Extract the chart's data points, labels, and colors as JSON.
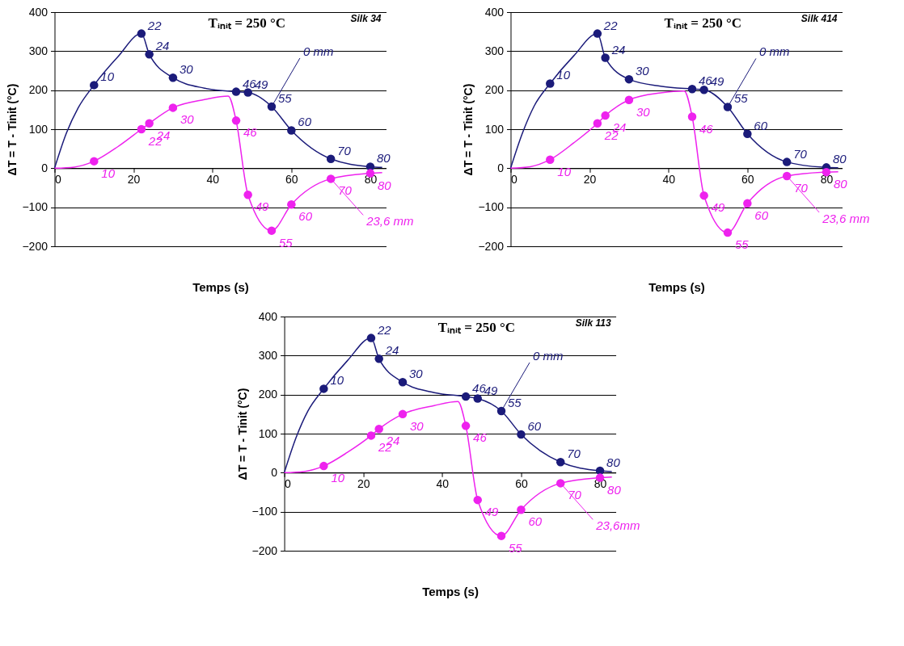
{
  "chart_data": [
    {
      "type": "line",
      "xlabel": "Temps (s)",
      "ylabel": "ΔT = T - Tinit (°C)",
      "xlim": [
        0,
        84
      ],
      "xticks": [
        0,
        20,
        40,
        60,
        80
      ],
      "ylim": [
        -200,
        400
      ],
      "yticks": [
        -200,
        -100,
        0,
        100,
        200,
        300,
        400
      ],
      "grid": "y",
      "marker": "circle",
      "annotations": [
        "Tᵢₙᵢₜ = 250 °C",
        "Silk 34",
        {
          "text": "10",
          "x": 10,
          "y": 213
        },
        {
          "text": "22",
          "x": 22,
          "y": 345
        },
        {
          "text": "24",
          "x": 24,
          "y": 292
        },
        {
          "text": "30",
          "x": 30,
          "y": 232
        },
        {
          "text": "46",
          "x": 46,
          "y": 196
        },
        {
          "text": "49",
          "x": 49,
          "y": 194
        },
        {
          "text": "55",
          "x": 55,
          "y": 158
        },
        {
          "text": "60",
          "x": 60,
          "y": 97
        },
        {
          "text": "70",
          "x": 70,
          "y": 24
        },
        {
          "text": "80",
          "x": 80,
          "y": 4
        },
        {
          "text": "10",
          "x": 10,
          "y": 18
        },
        {
          "text": "22",
          "x": 22,
          "y": 100
        },
        {
          "text": "24",
          "x": 24,
          "y": 115
        },
        {
          "text": "30",
          "x": 30,
          "y": 155
        },
        {
          "text": "46",
          "x": 46,
          "y": 122
        },
        {
          "text": "49",
          "x": 49,
          "y": -68
        },
        {
          "text": "55",
          "x": 55,
          "y": -160
        },
        {
          "text": "60",
          "x": 60,
          "y": -93
        },
        {
          "text": "70",
          "x": 70,
          "y": -27
        },
        {
          "text": "80",
          "x": 80,
          "y": -13
        }
      ],
      "series": [
        {
          "name": "0 mm",
          "color": "#1b1b7a",
          "marker": "none",
          "x": [
            0,
            3,
            6,
            10,
            16,
            22,
            24,
            30,
            38,
            46,
            49,
            55,
            60,
            70,
            80,
            83
          ],
          "values": [
            0,
            90,
            155,
            213,
            285,
            345,
            292,
            232,
            205,
            196,
            194,
            158,
            97,
            24,
            4,
            2
          ]
        },
        {
          "name": "23,6 mm",
          "color": "#ee22ee",
          "marker": "none",
          "x": [
            0,
            5,
            10,
            16,
            22,
            24,
            30,
            38,
            44,
            46,
            49,
            55,
            60,
            70,
            80,
            83
          ],
          "values": [
            0,
            3,
            18,
            55,
            100,
            115,
            155,
            176,
            185,
            122,
            -68,
            -160,
            -93,
            -27,
            -13,
            -11
          ]
        },
        {
          "type": "scatter",
          "color": "#1b1b7a",
          "x": [
            10,
            22,
            24,
            30,
            46,
            49,
            55,
            60,
            70,
            80
          ],
          "values": [
            213,
            345,
            292,
            232,
            196,
            194,
            158,
            97,
            24,
            4
          ]
        },
        {
          "type": "scatter",
          "color": "#ee22ee",
          "x": [
            10,
            22,
            24,
            30,
            46,
            49,
            55,
            60,
            70,
            80
          ],
          "values": [
            18,
            100,
            115,
            155,
            122,
            -68,
            -160,
            -93,
            -27,
            -13
          ]
        }
      ]
    },
    {
      "type": "line",
      "xlabel": "Temps (s)",
      "ylabel": "ΔT = T - Tinit (°C)",
      "xlim": [
        0,
        84
      ],
      "xticks": [
        0,
        20,
        40,
        60,
        80
      ],
      "ylim": [
        -200,
        400
      ],
      "yticks": [
        -200,
        -100,
        0,
        100,
        200,
        300,
        400
      ],
      "grid": "y",
      "marker": "circle",
      "annotations": [
        "Tᵢₙᵢₜ = 250 °C",
        "Silk 414",
        {
          "text": "10",
          "x": 10,
          "y": 217
        },
        {
          "text": "22",
          "x": 22,
          "y": 345
        },
        {
          "text": "24",
          "x": 24,
          "y": 283
        },
        {
          "text": "30",
          "x": 30,
          "y": 228
        },
        {
          "text": "46",
          "x": 46,
          "y": 203
        },
        {
          "text": "49",
          "x": 49,
          "y": 201
        },
        {
          "text": "55",
          "x": 55,
          "y": 157
        },
        {
          "text": "60",
          "x": 60,
          "y": 88
        },
        {
          "text": "70",
          "x": 70,
          "y": 16
        },
        {
          "text": "80",
          "x": 80,
          "y": 2
        },
        {
          "text": "10",
          "x": 10,
          "y": 22
        },
        {
          "text": "22",
          "x": 22,
          "y": 115
        },
        {
          "text": "24",
          "x": 24,
          "y": 135
        },
        {
          "text": "30",
          "x": 30,
          "y": 175
        },
        {
          "text": "46",
          "x": 46,
          "y": 132
        },
        {
          "text": "49",
          "x": 49,
          "y": -70
        },
        {
          "text": "55",
          "x": 55,
          "y": -165
        },
        {
          "text": "60",
          "x": 60,
          "y": -90
        },
        {
          "text": "70",
          "x": 70,
          "y": -20
        },
        {
          "text": "80",
          "x": 80,
          "y": -10
        }
      ],
      "series": [
        {
          "name": "0 mm",
          "color": "#1b1b7a",
          "marker": "none",
          "x": [
            0,
            3,
            6,
            10,
            16,
            22,
            24,
            30,
            38,
            46,
            49,
            55,
            60,
            70,
            80,
            83
          ],
          "values": [
            0,
            90,
            160,
            217,
            288,
            345,
            283,
            228,
            210,
            203,
            201,
            157,
            88,
            16,
            2,
            1
          ]
        },
        {
          "name": "23,6 mm",
          "color": "#ee22ee",
          "marker": "none",
          "x": [
            0,
            5,
            10,
            16,
            22,
            24,
            30,
            38,
            44,
            46,
            49,
            55,
            60,
            70,
            80,
            83
          ],
          "values": [
            0,
            4,
            22,
            65,
            115,
            135,
            175,
            193,
            198,
            132,
            -70,
            -165,
            -90,
            -20,
            -10,
            -9
          ]
        },
        {
          "type": "scatter",
          "color": "#1b1b7a",
          "x": [
            10,
            22,
            24,
            30,
            46,
            49,
            55,
            60,
            70,
            80
          ],
          "values": [
            217,
            345,
            283,
            228,
            203,
            201,
            157,
            88,
            16,
            2
          ]
        },
        {
          "type": "scatter",
          "color": "#ee22ee",
          "x": [
            10,
            22,
            24,
            30,
            46,
            49,
            55,
            60,
            70,
            80
          ],
          "values": [
            22,
            115,
            135,
            175,
            132,
            -70,
            -165,
            -90,
            -20,
            -10
          ]
        }
      ]
    },
    {
      "type": "line",
      "xlabel": "Temps (s)",
      "ylabel": "ΔT = T - Tinit (°C)",
      "xlim": [
        0,
        84
      ],
      "xticks": [
        0,
        20,
        40,
        60,
        80
      ],
      "ylim": [
        -200,
        400
      ],
      "yticks": [
        -200,
        -100,
        0,
        100,
        200,
        300,
        400
      ],
      "grid": "y",
      "marker": "circle",
      "annotations": [
        "Tᵢₙᵢₜ = 250 °C",
        "Silk 113",
        {
          "text": "10",
          "x": 10,
          "y": 215
        },
        {
          "text": "22",
          "x": 22,
          "y": 345
        },
        {
          "text": "24",
          "x": 24,
          "y": 292
        },
        {
          "text": "30",
          "x": 30,
          "y": 232
        },
        {
          "text": "46",
          "x": 46,
          "y": 195
        },
        {
          "text": "49",
          "x": 49,
          "y": 190
        },
        {
          "text": "55",
          "x": 55,
          "y": 158
        },
        {
          "text": "60",
          "x": 60,
          "y": 98
        },
        {
          "text": "70",
          "x": 70,
          "y": 27
        },
        {
          "text": "80",
          "x": 80,
          "y": 5
        },
        {
          "text": "10",
          "x": 10,
          "y": 17
        },
        {
          "text": "22",
          "x": 22,
          "y": 95
        },
        {
          "text": "24",
          "x": 24,
          "y": 112
        },
        {
          "text": "30",
          "x": 30,
          "y": 150
        },
        {
          "text": "46",
          "x": 46,
          "y": 120
        },
        {
          "text": "49",
          "x": 49,
          "y": -70
        },
        {
          "text": "55",
          "x": 55,
          "y": -162
        },
        {
          "text": "60",
          "x": 60,
          "y": -95
        },
        {
          "text": "70",
          "x": 70,
          "y": -27
        },
        {
          "text": "80",
          "x": 80,
          "y": -13
        }
      ],
      "series": [
        {
          "name": "0 mm",
          "color": "#1b1b7a",
          "marker": "none",
          "x": [
            0,
            3,
            6,
            10,
            16,
            22,
            24,
            30,
            38,
            46,
            49,
            55,
            60,
            70,
            80,
            83
          ],
          "values": [
            0,
            90,
            158,
            215,
            287,
            345,
            292,
            232,
            205,
            195,
            190,
            158,
            98,
            27,
            5,
            3
          ]
        },
        {
          "name": "23,6mm",
          "color": "#ee22ee",
          "marker": "none",
          "x": [
            0,
            5,
            10,
            16,
            22,
            24,
            30,
            38,
            44,
            46,
            49,
            55,
            60,
            70,
            80,
            83
          ],
          "values": [
            0,
            3,
            17,
            52,
            95,
            112,
            150,
            172,
            182,
            120,
            -70,
            -162,
            -95,
            -27,
            -13,
            -11
          ]
        },
        {
          "type": "scatter",
          "color": "#1b1b7a",
          "x": [
            10,
            22,
            24,
            30,
            46,
            49,
            55,
            60,
            70,
            80
          ],
          "values": [
            215,
            345,
            292,
            232,
            195,
            190,
            158,
            98,
            27,
            5
          ]
        },
        {
          "type": "scatter",
          "color": "#ee22ee",
          "x": [
            10,
            22,
            24,
            30,
            46,
            49,
            55,
            60,
            70,
            80
          ],
          "values": [
            17,
            95,
            112,
            150,
            120,
            -70,
            -162,
            -95,
            -27,
            -13
          ]
        }
      ]
    }
  ]
}
